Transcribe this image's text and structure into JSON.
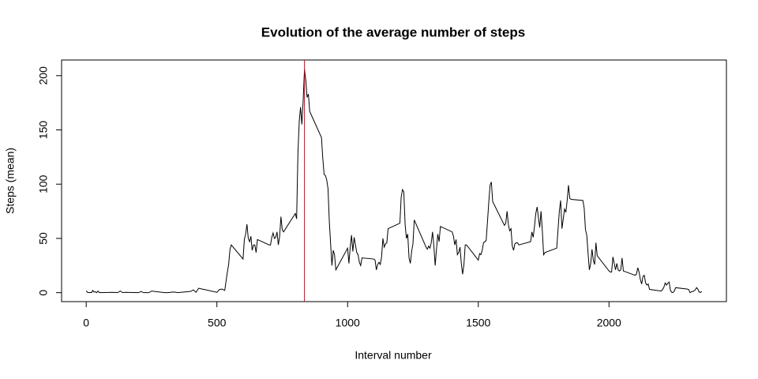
{
  "chart_data": {
    "type": "line",
    "title": "Evolution of the average number of steps",
    "xlabel": "Interval number",
    "ylabel": "Steps (mean)",
    "x": [
      0,
      5,
      10,
      15,
      20,
      25,
      30,
      35,
      40,
      45,
      50,
      55,
      100,
      110,
      120,
      130,
      140,
      150,
      200,
      210,
      220,
      230,
      240,
      250,
      300,
      310,
      320,
      330,
      340,
      350,
      400,
      410,
      420,
      430,
      440,
      450,
      500,
      510,
      520,
      530,
      540,
      545,
      550,
      555,
      600,
      605,
      610,
      615,
      620,
      625,
      630,
      635,
      640,
      645,
      650,
      655,
      700,
      705,
      710,
      715,
      720,
      725,
      730,
      735,
      740,
      745,
      750,
      755,
      800,
      805,
      810,
      815,
      820,
      825,
      830,
      835,
      840,
      845,
      850,
      855,
      900,
      905,
      910,
      915,
      920,
      925,
      930,
      935,
      940,
      945,
      950,
      955,
      1000,
      1005,
      1010,
      1015,
      1020,
      1025,
      1030,
      1035,
      1040,
      1045,
      1050,
      1055,
      1100,
      1105,
      1110,
      1115,
      1120,
      1125,
      1130,
      1135,
      1140,
      1145,
      1150,
      1155,
      1200,
      1205,
      1210,
      1215,
      1220,
      1225,
      1230,
      1235,
      1240,
      1245,
      1250,
      1255,
      1300,
      1305,
      1310,
      1315,
      1320,
      1325,
      1330,
      1335,
      1340,
      1345,
      1350,
      1355,
      1400,
      1405,
      1410,
      1415,
      1420,
      1425,
      1430,
      1435,
      1440,
      1445,
      1450,
      1455,
      1500,
      1505,
      1510,
      1515,
      1520,
      1525,
      1530,
      1535,
      1540,
      1545,
      1550,
      1555,
      1600,
      1605,
      1610,
      1615,
      1620,
      1625,
      1630,
      1635,
      1640,
      1645,
      1650,
      1655,
      1700,
      1705,
      1710,
      1715,
      1720,
      1725,
      1730,
      1735,
      1740,
      1745,
      1750,
      1755,
      1800,
      1805,
      1810,
      1815,
      1820,
      1825,
      1830,
      1835,
      1840,
      1845,
      1850,
      1855,
      1900,
      1905,
      1910,
      1915,
      1920,
      1925,
      1930,
      1935,
      1940,
      1945,
      1950,
      1955,
      2000,
      2005,
      2010,
      2015,
      2020,
      2025,
      2030,
      2035,
      2040,
      2045,
      2050,
      2055,
      2100,
      2105,
      2110,
      2115,
      2120,
      2125,
      2130,
      2135,
      2140,
      2145,
      2150,
      2155,
      2200,
      2205,
      2210,
      2215,
      2220,
      2225,
      2230,
      2235,
      2240,
      2245,
      2250,
      2255,
      2300,
      2305,
      2310,
      2315,
      2320,
      2325,
      2330,
      2335,
      2340,
      2345,
      2350,
      2355
    ],
    "values": [
      1.7,
      0.3,
      0.1,
      0.2,
      0,
      2.1,
      0.5,
      0.9,
      0,
      1.5,
      0.2,
      0,
      0.3,
      0.2,
      0,
      1.5,
      0,
      0.3,
      0,
      1.1,
      0,
      0,
      0,
      1.5,
      0,
      0,
      0.2,
      0.6,
      0.5,
      0,
      1.2,
      2.6,
      0.3,
      4.1,
      3.5,
      3,
      0.3,
      3,
      3.3,
      2.1,
      19,
      26,
      40,
      44,
      31,
      49,
      54,
      63,
      50,
      47,
      52,
      39,
      44,
      44,
      37,
      49,
      44,
      44,
      51,
      55,
      50,
      51,
      56,
      44,
      52,
      70,
      58,
      56,
      73,
      68,
      129,
      158,
      171,
      155,
      177,
      206,
      196,
      180,
      183,
      167,
      143,
      124,
      109,
      108,
      104,
      96,
      66,
      45,
      25,
      39,
      35,
      21,
      41,
      27,
      42,
      53,
      38,
      51,
      44,
      37,
      35,
      28,
      25,
      32,
      31,
      30,
      21,
      26,
      28,
      26,
      33,
      50,
      42,
      45,
      46,
      59,
      64,
      88,
      95,
      93,
      63,
      50,
      54,
      32,
      27,
      38,
      45,
      67,
      42,
      40,
      43,
      41,
      46,
      56,
      43,
      25,
      40,
      54,
      47,
      61,
      56,
      52,
      44,
      49,
      35,
      37,
      42,
      27,
      17,
      26,
      44,
      44,
      30,
      36,
      35,
      39,
      46,
      47,
      48,
      65,
      83,
      99,
      102,
      84,
      62,
      64,
      75,
      63,
      57,
      59,
      43,
      39,
      45,
      46,
      46,
      44,
      47,
      56,
      51,
      61,
      73,
      79,
      69,
      60,
      75,
      57,
      35,
      37,
      41,
      58,
      75,
      85,
      59,
      68,
      77,
      74,
      85,
      99,
      87,
      86,
      85,
      78,
      58,
      53,
      36,
      21,
      27,
      40,
      30,
      26,
      46,
      34,
      20,
      19,
      19,
      33,
      27,
      21,
      27,
      21,
      20,
      21,
      32,
      20,
      16,
      17,
      23,
      19,
      12,
      8,
      15,
      16,
      9,
      7,
      8,
      3,
      1.5,
      3,
      5,
      9,
      7,
      8.7,
      9.8,
      2.2,
      0.3,
      0.1,
      1.6,
      4.6,
      3.3,
      2.8,
      0,
      0.8,
      1,
      1.6,
      2.6,
      4.7,
      3.3,
      0.6,
      0.2,
      1.1
    ],
    "color": "#000000",
    "vline": {
      "x": 835,
      "color": "#b2182b"
    },
    "xlim": [
      -94.2,
      2449.2
    ],
    "ylim": [
      -8.25,
      214.4
    ],
    "xticks": [
      0,
      500,
      1000,
      1500,
      2000
    ],
    "yticks": [
      0,
      50,
      100,
      150,
      200
    ]
  }
}
